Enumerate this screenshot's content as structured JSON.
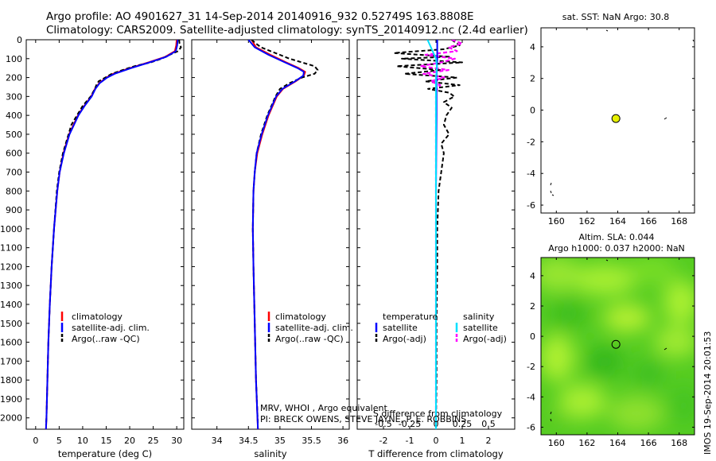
{
  "header": {
    "line1": "Argo profile: AO 4901627_31 14-Sep-2014 20140916_932 0.52749S 163.8808E",
    "line2": "Climatology: CARS2009. Satellite-adjusted climatology: synTS_20140912.nc (2.4d earlier)"
  },
  "side_stamp": "IMOS 19-Sep-2014 20:01:53",
  "colors": {
    "climatology": "#ff0000",
    "satellite": "#0000ff",
    "argo": "#000000",
    "sal_satellite": "#00e0ff",
    "sal_argo": "#ff00ff",
    "map_dot": "#e6f000",
    "sla_field_base": "#66dd22"
  },
  "chart_data": [
    {
      "type": "line",
      "title": "",
      "xlabel": "temperature (deg C)",
      "ylabel": "",
      "xlim": [
        -2,
        31.5
      ],
      "ylim": [
        2060,
        0
      ],
      "xticks": [
        0,
        5,
        10,
        15,
        20,
        25,
        30
      ],
      "yticks": [
        0,
        100,
        200,
        300,
        400,
        500,
        600,
        700,
        800,
        900,
        1000,
        1100,
        1200,
        1300,
        1400,
        1500,
        1600,
        1700,
        1800,
        1900,
        2000
      ],
      "legend": [
        "climatology",
        "satellite-adj. clim.",
        "Argo(..raw -QC)"
      ],
      "series": [
        {
          "name": "climatology",
          "depth": [
            0,
            30,
            60,
            90,
            120,
            150,
            180,
            200,
            230,
            260,
            300,
            350,
            400,
            500,
            600,
            700,
            800,
            1000,
            1200,
            1400,
            1600,
            1800,
            2000,
            2060
          ],
          "values": [
            30.0,
            29.9,
            29.6,
            27.6,
            24.0,
            20.0,
            16.5,
            15.0,
            13.5,
            12.6,
            11.8,
            10.3,
            9.0,
            7.1,
            5.9,
            5.1,
            4.6,
            3.9,
            3.4,
            3.0,
            2.7,
            2.5,
            2.3,
            2.2
          ]
        },
        {
          "name": "satellite-adj. clim.",
          "depth": [
            0,
            30,
            60,
            90,
            120,
            150,
            180,
            200,
            230,
            260,
            300,
            350,
            400,
            500,
            600,
            700,
            800,
            1000,
            1200,
            1400,
            1600,
            1800,
            2000,
            2060
          ],
          "values": [
            30.2,
            30.1,
            29.8,
            27.8,
            24.2,
            20.3,
            16.8,
            15.2,
            13.6,
            12.7,
            11.9,
            10.4,
            9.1,
            7.2,
            6.0,
            5.1,
            4.6,
            3.9,
            3.4,
            3.0,
            2.7,
            2.5,
            2.3,
            2.2
          ]
        },
        {
          "name": "Argo(..raw -QC)",
          "depth": [
            0,
            20,
            40,
            60,
            80,
            100,
            120,
            140,
            160,
            180,
            200,
            220,
            240,
            260,
            300,
            350,
            400,
            450,
            500,
            550,
            600,
            700,
            800,
            1000,
            1200,
            1400,
            1600,
            1800,
            2000,
            2040
          ],
          "values": [
            30.5,
            30.6,
            30.9,
            30.3,
            28.5,
            26.8,
            24.5,
            21.0,
            18.5,
            16.2,
            14.8,
            13.4,
            12.9,
            12.6,
            11.7,
            10.0,
            8.8,
            7.6,
            7.0,
            6.4,
            5.8,
            5.0,
            4.5,
            3.9,
            3.4,
            3.0,
            2.7,
            2.5,
            2.3,
            2.2
          ]
        }
      ]
    },
    {
      "type": "line",
      "title": "",
      "xlabel": "salinity",
      "ylabel": "",
      "xlim": [
        33.6,
        36.1
      ],
      "ylim": [
        2060,
        0
      ],
      "xticks": [
        34,
        34.5,
        35,
        35.5,
        36
      ],
      "legend": [
        "climatology",
        "satellite-adj. clim.",
        "Argo(..raw -QC)"
      ],
      "series": [
        {
          "name": "climatology",
          "depth": [
            0,
            40,
            80,
            120,
            150,
            170,
            190,
            220,
            260,
            300,
            400,
            500,
            600,
            700,
            800,
            1000,
            1200,
            1500,
            1800,
            2060
          ],
          "values": [
            34.55,
            34.62,
            34.85,
            35.1,
            35.3,
            35.4,
            35.38,
            35.25,
            35.05,
            34.95,
            34.82,
            34.72,
            34.64,
            34.6,
            34.58,
            34.57,
            34.58,
            34.6,
            34.62,
            34.65
          ]
        },
        {
          "name": "satellite-adj. clim.",
          "depth": [
            0,
            40,
            80,
            120,
            150,
            170,
            190,
            220,
            260,
            300,
            400,
            500,
            600,
            700,
            800,
            1000,
            1200,
            1500,
            1800,
            2060
          ],
          "values": [
            34.5,
            34.6,
            34.82,
            35.08,
            35.28,
            35.38,
            35.37,
            35.24,
            35.04,
            34.94,
            34.81,
            34.71,
            34.63,
            34.6,
            34.58,
            34.57,
            34.58,
            34.6,
            34.62,
            34.65
          ]
        },
        {
          "name": "Argo(..raw -QC)",
          "depth": [
            0,
            20,
            40,
            60,
            80,
            100,
            120,
            140,
            160,
            180,
            200,
            230,
            260,
            300,
            400,
            500,
            600,
            700,
            800,
            1000,
            1200,
            1500,
            1800,
            2040
          ],
          "values": [
            34.55,
            34.62,
            34.7,
            34.85,
            35.0,
            35.15,
            35.35,
            35.55,
            35.6,
            35.55,
            35.35,
            35.15,
            35.0,
            34.93,
            34.8,
            34.7,
            34.63,
            34.6,
            34.58,
            34.57,
            34.58,
            34.6,
            34.62,
            34.65
          ]
        }
      ]
    },
    {
      "type": "line",
      "title": "",
      "xlabel": "T difference from climatology",
      "ylabel": "",
      "xlim": [
        -3,
        3
      ],
      "ylim": [
        2060,
        0
      ],
      "xticks": [
        -2,
        -1,
        0,
        1,
        2
      ],
      "secondary_axis_label": "S difference from climatology",
      "secondary_xticks": [
        "-0.5",
        "-0.25",
        "0",
        "0.25",
        "0.5"
      ],
      "legend_title_left": "temperature",
      "legend_title_right": "salinity",
      "legend": [
        "satellite",
        "Argo(-adj)",
        "satellite",
        "Argo(-adj)"
      ],
      "series": [
        {
          "name": "T satellite",
          "depth": [
            0,
            100,
            200,
            400,
            800,
            1200,
            1600,
            2060
          ],
          "values": [
            0.05,
            0.05,
            0.02,
            0.02,
            0.0,
            0.0,
            0.0,
            0.0
          ]
        },
        {
          "name": "T Argo(-adj)",
          "depth": [
            0,
            30,
            50,
            70,
            90,
            100,
            120,
            140,
            160,
            180,
            200,
            220,
            240,
            260,
            280,
            300,
            330,
            360,
            400,
            450,
            500,
            550,
            600,
            700,
            800,
            1000,
            1200,
            1500,
            1800,
            2040
          ],
          "values": [
            0.6,
            0.9,
            0.3,
            -1.6,
            0.5,
            -1.3,
            1.0,
            -1.5,
            0.2,
            -1.2,
            0.8,
            -0.4,
            0.9,
            -0.3,
            0.5,
            0.7,
            0.3,
            0.6,
            0.4,
            0.3,
            0.5,
            0.2,
            0.3,
            0.2,
            0.1,
            0.05,
            0.05,
            0.02,
            0.02,
            0.0
          ]
        },
        {
          "name": "S satellite",
          "depth": [
            0,
            50,
            100,
            150,
            200,
            300,
            500,
            1000,
            1500,
            2060
          ],
          "values": [
            -0.08,
            -0.04,
            0.0,
            0.01,
            0.0,
            0.0,
            0.0,
            0.0,
            0.0,
            0.0
          ]
        },
        {
          "name": "S Argo(-adj)",
          "depth": [
            0,
            20,
            40,
            60,
            80,
            100,
            120,
            140,
            160,
            180,
            200,
            220,
            240,
            260,
            300,
            400,
            600,
            1000,
            1500,
            2040
          ],
          "values": [
            0.15,
            0.25,
            0.12,
            0.2,
            -0.1,
            0.18,
            0.05,
            -0.15,
            0.12,
            -0.12,
            0.08,
            -0.05,
            0.04,
            0.01,
            0.0,
            0.0,
            0.0,
            0.0,
            0.0,
            0.0
          ]
        }
      ]
    },
    {
      "type": "scatter",
      "title": "sat. SST: NaN Argo: 30.8",
      "xlim": [
        159,
        169
      ],
      "ylim": [
        -6.5,
        5.2
      ],
      "xticks": [
        160,
        162,
        164,
        166,
        168
      ],
      "yticks": [
        4,
        2,
        0,
        -2,
        -4,
        -6
      ],
      "argo_position": [
        163.88,
        -0.53
      ]
    },
    {
      "type": "heatmap",
      "title": "Altim. SLA: 0.044",
      "subtitle": "Argo h1000: 0.037 h2000: NaN",
      "xlim": [
        159,
        169
      ],
      "ylim": [
        -6.5,
        5.2
      ],
      "xticks": [
        160,
        162,
        164,
        166,
        168
      ],
      "yticks": [
        4,
        2,
        0,
        -2,
        -4,
        -6
      ],
      "argo_position": [
        163.88,
        -0.53
      ]
    }
  ]
}
